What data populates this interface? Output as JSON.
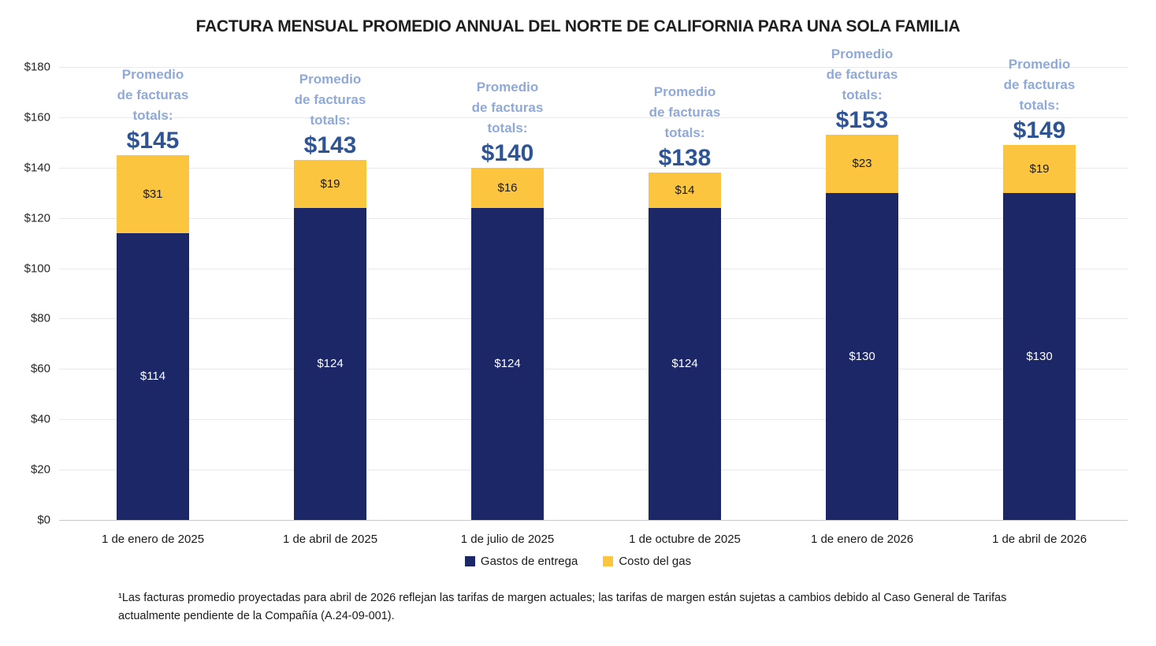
{
  "title": "FACTURA MENSUAL PROMEDIO ANNUAL DEL NORTE DE CALIFORNIA PARA UNA SOLA FAMILIA",
  "chart_data": {
    "type": "bar",
    "stacked": true,
    "title": "FACTURA MENSUAL PROMEDIO ANNUAL DEL NORTE DE CALIFORNIA PARA UNA SOLA FAMILIA",
    "xlabel": "",
    "ylabel": "",
    "grid": true,
    "legend_position": "bottom",
    "ylim": [
      0,
      180
    ],
    "categories": [
      "1 de enero de 2025",
      "1 de abril de 2025",
      "1 de julio de 2025",
      "1 de octubre de 2025",
      "1 de enero de 2026",
      "1 de abril de 2026"
    ],
    "series": [
      {
        "name": "Gastos de entrega",
        "color": "#1b2766",
        "values": [
          114,
          124,
          124,
          124,
          130,
          130
        ],
        "value_labels": [
          "$114",
          "$124",
          "$124",
          "$124",
          "$130",
          "$130"
        ]
      },
      {
        "name": "Costo del gas",
        "color": "#fbc540",
        "values": [
          31,
          19,
          16,
          14,
          23,
          19
        ],
        "value_labels": [
          "$31",
          "$19",
          "$16",
          "$14",
          "$23",
          "$19"
        ]
      }
    ],
    "totals": [
      145,
      143,
      140,
      138,
      153,
      149
    ],
    "total_labels": [
      "$145",
      "$143",
      "$140",
      "$138",
      "$153",
      "$149"
    ],
    "annotation_caption_lines": [
      "Promedio",
      "de facturas",
      "totals:"
    ],
    "y_ticks": [
      {
        "value": 0,
        "label": "$0"
      },
      {
        "value": 20,
        "label": "$20"
      },
      {
        "value": 40,
        "label": "$40"
      },
      {
        "value": 60,
        "label": "$60"
      },
      {
        "value": 80,
        "label": "$80"
      },
      {
        "value": 100,
        "label": "$100"
      },
      {
        "value": 120,
        "label": "$120"
      },
      {
        "value": 140,
        "label": "$140"
      },
      {
        "value": 160,
        "label": "$160"
      },
      {
        "value": 180,
        "label": "$180"
      }
    ]
  },
  "legend": {
    "items": [
      {
        "label": "Gastos de entrega",
        "color": "#1b2766"
      },
      {
        "label": "Costo del gas",
        "color": "#fbc540"
      }
    ]
  },
  "footnote": "¹Las facturas promedio proyectadas para abril de 2026 reflejan las tarifas de margen actuales; las tarifas de margen están sujetas a cambios debido al Caso General de Tarifas actualmente pendiente de la Compañía (A.24-09-001).",
  "colors": {
    "annotation_caption": "#8fa9d9",
    "annotation_total": "#2e5496",
    "delivery_bar": "#1b2766",
    "gas_bar": "#fbc540",
    "gridline": "#e9e9e9",
    "axis_baseline": "#c9c9c9"
  }
}
